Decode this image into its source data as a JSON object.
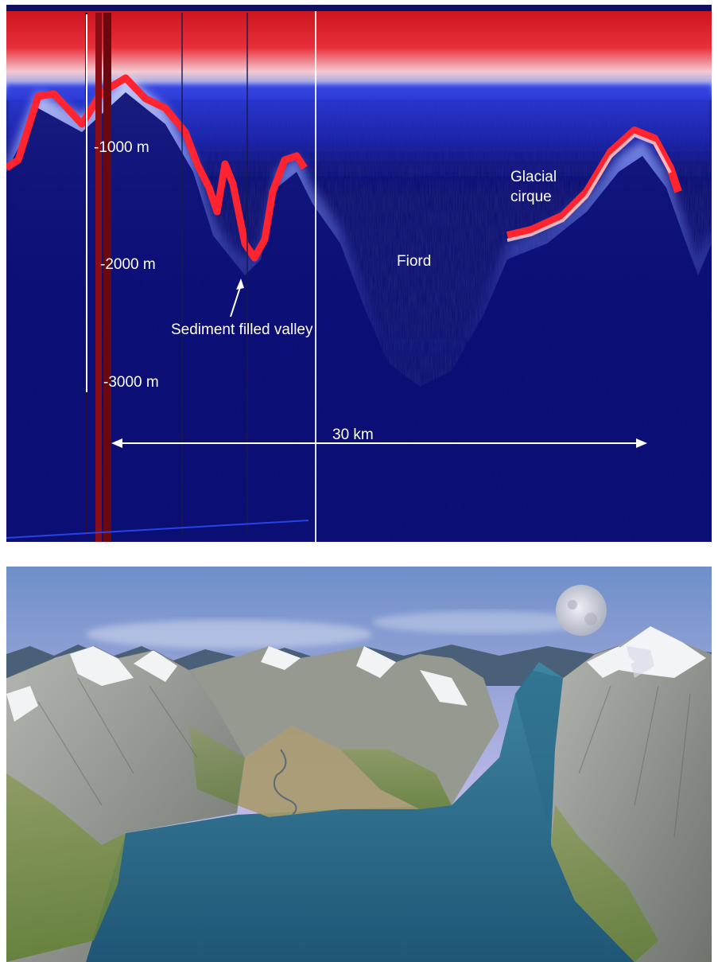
{
  "radar_profile": {
    "depth_labels": [
      "-1000 m",
      "-2000 m",
      "-3000 m"
    ],
    "annotations": {
      "sediment_valley": "Sediment filled valley",
      "fiord": "Fiord",
      "glacial_cirque_line1": "Glacial",
      "glacial_cirque_line2": "cirque"
    },
    "scale_bar_label": "30 km",
    "colors": {
      "background": "#0a0c6e",
      "strong_return": "#e0141e",
      "weak_return": "#1e2cd8",
      "annotation_text": "#ffffff"
    }
  },
  "landscape_illustration": {
    "colors": {
      "sky_top": "#6f8fc8",
      "sky_bottom": "#c7bfe6",
      "rock": "#8e918c",
      "snow": "#f4f5f7",
      "grass": "#6d8f3a",
      "water": "#2c6a86"
    }
  }
}
